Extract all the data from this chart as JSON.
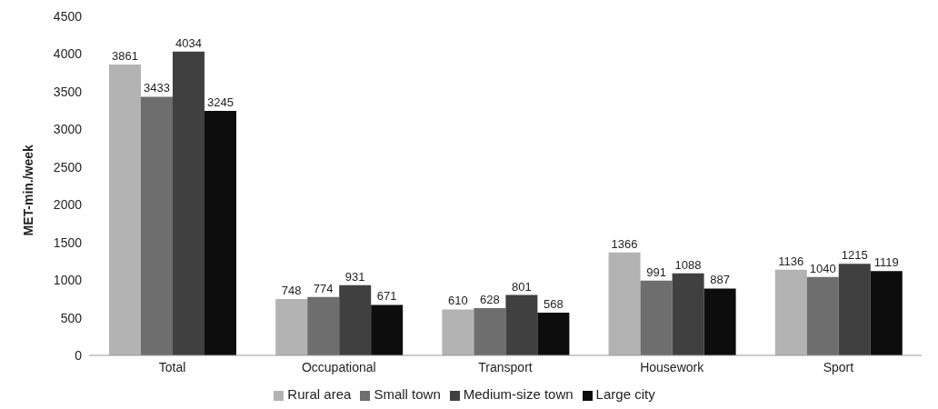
{
  "chart_data": {
    "type": "bar",
    "ylabel": "MET-min./week",
    "categories": [
      "Total",
      "Occupational",
      "Transport",
      "Housework",
      "Sport"
    ],
    "series": [
      {
        "name": "Rural area",
        "color": "#b3b3b3",
        "values": [
          3861,
          748,
          610,
          1366,
          1136
        ]
      },
      {
        "name": "Small town",
        "color": "#6e6e6e",
        "values": [
          3433,
          774,
          628,
          991,
          1040
        ]
      },
      {
        "name": "Medium-size town",
        "color": "#404040",
        "values": [
          4034,
          931,
          801,
          1088,
          1215
        ]
      },
      {
        "name": "Large city",
        "color": "#0d0d0d",
        "values": [
          3245,
          671,
          568,
          887,
          1119
        ]
      }
    ],
    "ylim": [
      0,
      4500
    ],
    "yticks": [
      0,
      500,
      1000,
      1500,
      2000,
      2500,
      3000,
      3500,
      4000,
      4500
    ],
    "grid": false,
    "legend": "bottom",
    "data_labels": true
  }
}
